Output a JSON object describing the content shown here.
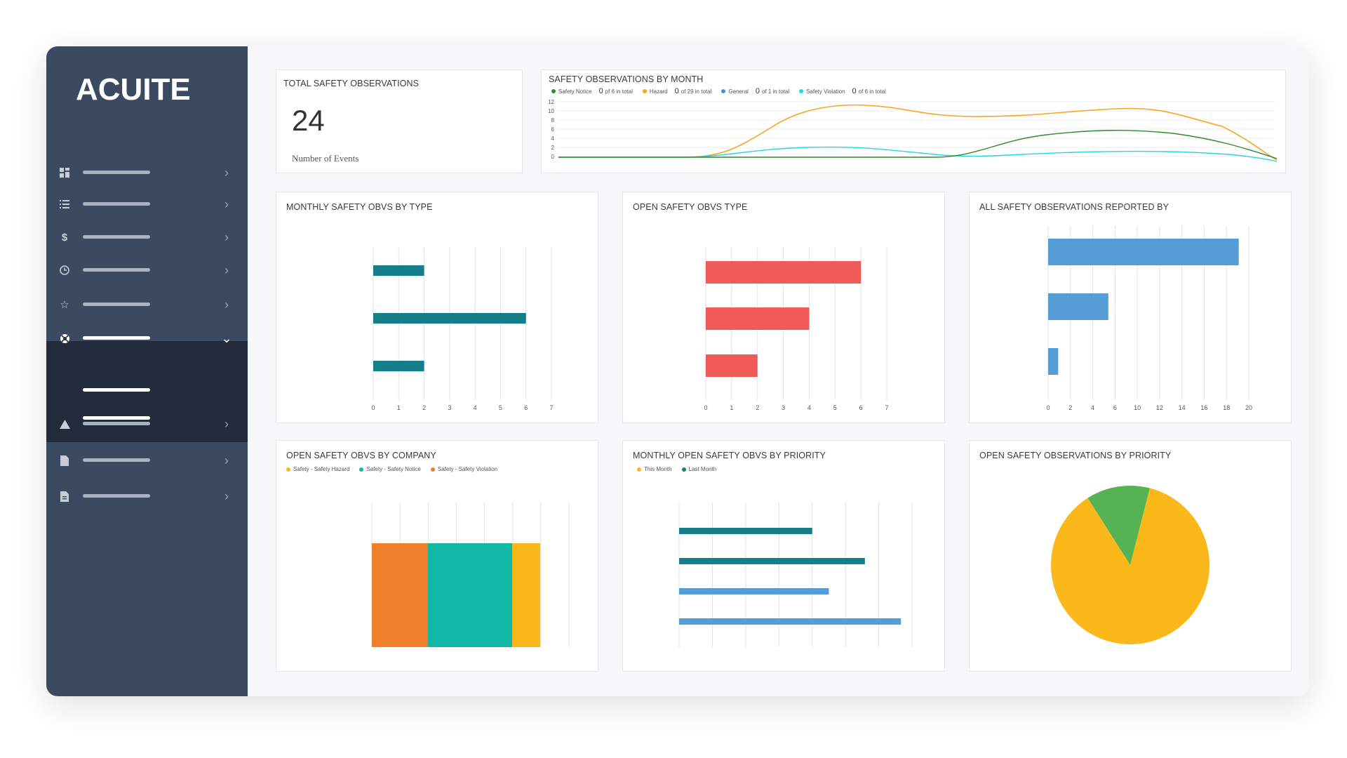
{
  "brand": {
    "logo_text": "ACUITE"
  },
  "colors": {
    "sidebar": "#3b4a61",
    "sidebar_active": "#212b3b",
    "teal": "#147f8a",
    "red": "#f15b57",
    "blue": "#549dd6",
    "orange": "#f07f2a",
    "green_teal": "#11b8a5",
    "yellow": "#fbb81a",
    "green": "#55b354",
    "dark_green": "#2e8b2f",
    "light_blue": "#25d6e0"
  },
  "sidebar": {
    "items": [
      {
        "icon": "dashboard-icon"
      },
      {
        "icon": "list-icon"
      },
      {
        "icon": "dollar-icon"
      },
      {
        "icon": "clock-icon"
      },
      {
        "icon": "star-icon"
      },
      {
        "icon": "lifebuoy-icon",
        "active": true
      },
      {
        "icon": "warning-icon"
      },
      {
        "icon": "file-icon"
      },
      {
        "icon": "document-icon"
      }
    ]
  },
  "kpi": {
    "title": "TOTAL SAFETY OBSERVATIONS",
    "value": "24",
    "label": "Number of Events"
  },
  "monthly": {
    "title": "SAFETY OBSERVATIONS BY MONTH",
    "legend": [
      {
        "name": "Safety Notice",
        "count": "0",
        "total": "pf 6 in total",
        "color": "#2e8b2f"
      },
      {
        "name": "Hazard",
        "count": "0",
        "total": "of 29 in total",
        "color": "#f5a623"
      },
      {
        "name": "General",
        "count": "0",
        "total": "of 1 in total",
        "color": "#4a90d9"
      },
      {
        "name": "Safety Violation",
        "count": "0",
        "total": "of 6 in total",
        "color": "#25d6e0"
      }
    ],
    "y_ticks": [
      "12",
      "10",
      "8",
      "6",
      "4",
      "2",
      "0"
    ]
  },
  "chart_data": [
    {
      "type": "bar",
      "title": "MONTHLY SAFETY OBVS BY TYPE",
      "orientation": "horizontal",
      "values": [
        2,
        6,
        2
      ],
      "x_ticks": [
        "0",
        "1",
        "2",
        "3",
        "4",
        "5",
        "6",
        "7"
      ],
      "xlim": [
        0,
        7
      ],
      "color": "#147f8a"
    },
    {
      "type": "bar",
      "title": "OPEN SAFETY OBVS TYPE",
      "orientation": "horizontal",
      "values": [
        6,
        4,
        2
      ],
      "x_ticks": [
        "0",
        "1",
        "2",
        "3",
        "4",
        "5",
        "6",
        "7"
      ],
      "xlim": [
        0,
        7
      ],
      "color": "#f15b57"
    },
    {
      "type": "bar",
      "title": "ALL SAFETY OBSERVATIONS REPORTED BY",
      "orientation": "horizontal",
      "values": [
        19,
        6,
        1
      ],
      "x_ticks": [
        "0",
        "2",
        "4",
        "6",
        "10",
        "12",
        "14",
        "16",
        "18",
        "20"
      ],
      "xlim": [
        0,
        20
      ],
      "color": "#549dd6"
    },
    {
      "type": "bar",
      "title": "OPEN SAFETY OBVS BY COMPANY",
      "stacked": true,
      "series": [
        {
          "name": "Safety - Safety Hazard",
          "value": 1,
          "color": "#fbb81a"
        },
        {
          "name": "Safety - Safety Notice",
          "value": 3,
          "color": "#11b8a5"
        },
        {
          "name": "Safety - Safety Violation",
          "value": 2,
          "color": "#f07f2a"
        }
      ]
    },
    {
      "type": "bar",
      "title": "MONTHLY OPEN SAFETY OBVS BY PRIORITY",
      "orientation": "horizontal",
      "series": [
        {
          "name": "This Month",
          "color": "#fbb81a"
        },
        {
          "name": "Last Month",
          "color": "#147f8a"
        }
      ],
      "bars": [
        {
          "value": 4.8,
          "color": "#147f8a"
        },
        {
          "value": 6.7,
          "color": "#147f8a"
        },
        {
          "value": 5.4,
          "color": "#549dd6"
        },
        {
          "value": 8,
          "color": "#549dd6"
        }
      ],
      "xlim": [
        0,
        8.4
      ]
    },
    {
      "type": "pie",
      "title": "OPEN SAFETY OBSERVATIONS BY PRIORITY",
      "slices": [
        {
          "value": 87,
          "color": "#fbb81a"
        },
        {
          "value": 13,
          "color": "#55b354"
        }
      ]
    }
  ]
}
